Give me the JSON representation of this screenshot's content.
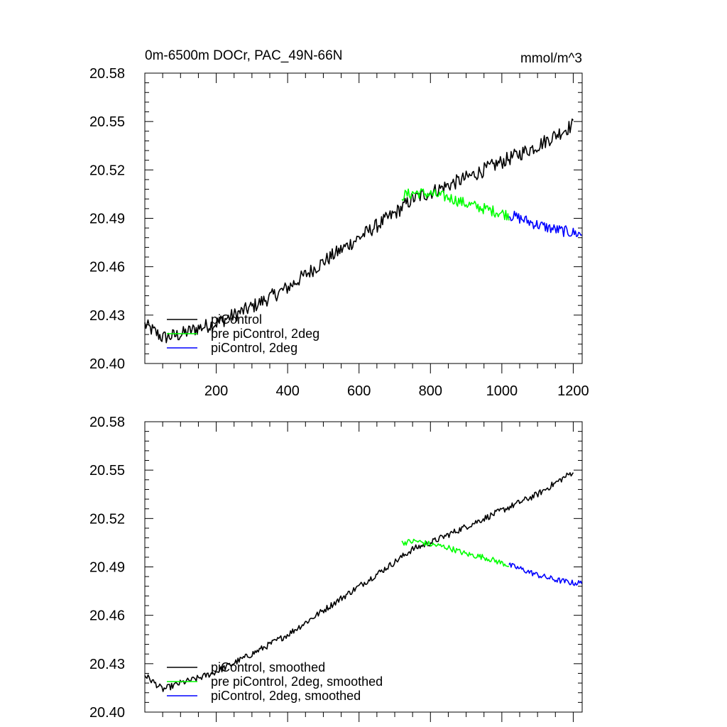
{
  "figure": {
    "title": "0m-6500m DOCr, PAC_49N-66N",
    "units": "mmol/m^3"
  },
  "chart_data": [
    {
      "type": "line",
      "panel": "top",
      "title": "0m-6500m DOCr, PAC_49N-66N",
      "units_label": "mmol/m^3",
      "xlim": [
        0,
        1225
      ],
      "ylim": [
        20.4,
        20.58
      ],
      "x_ticks": [
        200,
        400,
        600,
        800,
        1000,
        1200
      ],
      "x_tick_labels": [
        "200",
        "400",
        "600",
        "800",
        "1000",
        "1200"
      ],
      "y_ticks": [
        20.4,
        20.43,
        20.46,
        20.49,
        20.52,
        20.55,
        20.58
      ],
      "y_tick_labels": [
        "20.40",
        "20.43",
        "20.46",
        "20.49",
        "20.52",
        "20.55",
        "20.58"
      ],
      "legend_position": "bottom-left",
      "series": [
        {
          "name": "piControl",
          "color": "#000000",
          "x": [
            0,
            50,
            100,
            150,
            200,
            300,
            400,
            500,
            600,
            700,
            750,
            800,
            900,
            1000,
            1100,
            1200
          ],
          "y": [
            20.424,
            20.416,
            20.418,
            20.422,
            20.425,
            20.435,
            20.447,
            20.463,
            20.478,
            20.493,
            20.502,
            20.506,
            20.515,
            20.525,
            20.535,
            20.548
          ],
          "noise": 0.0045
        },
        {
          "name": "pre piControl, 2deg",
          "color": "#00ff00",
          "x": [
            720,
            760,
            800,
            850,
            900,
            950,
            1020
          ],
          "y": [
            20.504,
            20.506,
            20.505,
            20.503,
            20.499,
            20.496,
            20.492
          ],
          "noise": 0.0035
        },
        {
          "name": "piControl, 2deg",
          "color": "#0000ff",
          "x": [
            1020,
            1050,
            1100,
            1150,
            1200,
            1225
          ],
          "y": [
            20.492,
            20.49,
            20.486,
            20.483,
            20.481,
            20.48
          ],
          "noise": 0.0035
        }
      ]
    },
    {
      "type": "line",
      "panel": "bottom",
      "xlim": [
        0,
        1225
      ],
      "ylim": [
        20.4,
        20.58
      ],
      "x_ticks": [
        200,
        400,
        600,
        800,
        1000,
        1200
      ],
      "y_ticks": [
        20.4,
        20.43,
        20.46,
        20.49,
        20.52,
        20.55,
        20.58
      ],
      "y_tick_labels": [
        "20.40",
        "20.43",
        "20.46",
        "20.49",
        "20.52",
        "20.55",
        "20.58"
      ],
      "legend_position": "bottom-left",
      "series": [
        {
          "name": "piControl, smoothed",
          "color": "#000000",
          "x": [
            0,
            50,
            100,
            150,
            200,
            300,
            400,
            500,
            600,
            700,
            750,
            800,
            900,
            1000,
            1100,
            1200
          ],
          "y": [
            20.423,
            20.414,
            20.418,
            20.421,
            20.425,
            20.436,
            20.448,
            20.463,
            20.478,
            20.493,
            20.501,
            20.505,
            20.515,
            20.525,
            20.535,
            20.549
          ],
          "noise": 0.002
        },
        {
          "name": "pre piControl, 2deg, smoothed",
          "color": "#00ff00",
          "x": [
            720,
            760,
            800,
            850,
            900,
            950,
            1020
          ],
          "y": [
            20.505,
            20.506,
            20.504,
            20.502,
            20.498,
            20.496,
            20.491
          ],
          "noise": 0.0018
        },
        {
          "name": "piControl, 2deg, smoothed",
          "color": "#0000ff",
          "x": [
            1020,
            1050,
            1100,
            1150,
            1200,
            1225
          ],
          "y": [
            20.491,
            20.489,
            20.485,
            20.482,
            20.48,
            20.48
          ],
          "noise": 0.0018
        }
      ]
    }
  ]
}
